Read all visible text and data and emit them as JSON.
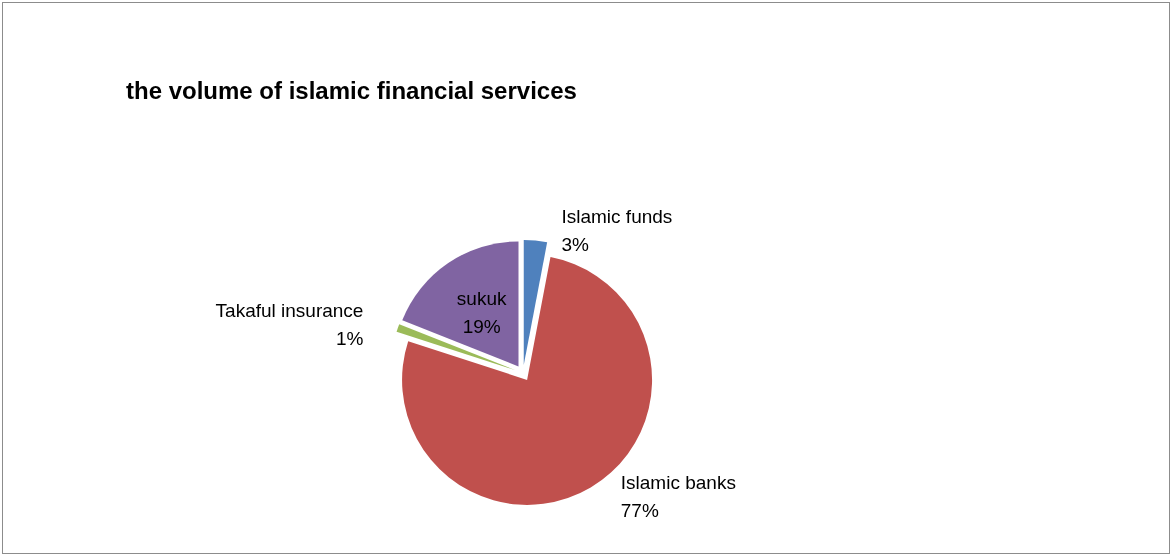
{
  "chart_data": {
    "type": "pie",
    "title": "the volume of islamic financial services",
    "categories": [
      "Islamic funds",
      "Islamic banks",
      "Takaful insurance",
      "sukuk"
    ],
    "values": [
      3,
      77,
      1,
      19
    ],
    "value_labels": [
      "3%",
      "77%",
      "1%",
      "19%"
    ],
    "colors": [
      "#4f81bd",
      "#c0504d",
      "#9bbb59",
      "#8064a2"
    ],
    "legend": false
  }
}
